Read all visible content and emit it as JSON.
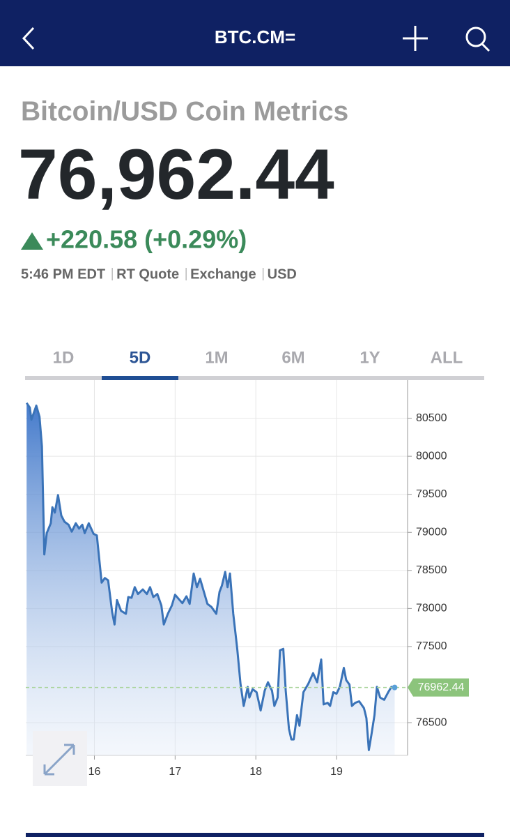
{
  "header": {
    "title": "BTC.CM="
  },
  "quote": {
    "name": "Bitcoin/USD Coin Metrics",
    "price": "76,962.44",
    "change": "+220.58 (+0.29%)",
    "meta": [
      "5:46 PM EDT",
      "RT Quote",
      "Exchange",
      "USD"
    ]
  },
  "tabs": {
    "items": [
      "1D",
      "5D",
      "1M",
      "6M",
      "1Y",
      "ALL"
    ],
    "active": 1
  },
  "chart_data": {
    "type": "area",
    "x": [
      15.16,
      15.2,
      15.22,
      15.28,
      15.32,
      15.35,
      15.38,
      15.41,
      15.46,
      15.48,
      15.51,
      15.55,
      15.59,
      15.63,
      15.68,
      15.72,
      15.77,
      15.81,
      15.85,
      15.88,
      15.93,
      15.99,
      16.03,
      16.09,
      16.13,
      16.17,
      16.22,
      16.25,
      16.28,
      16.33,
      16.39,
      16.42,
      16.46,
      16.5,
      16.54,
      16.6,
      16.65,
      16.69,
      16.73,
      16.78,
      16.83,
      16.86,
      16.91,
      16.96,
      17.0,
      17.04,
      17.09,
      17.14,
      17.18,
      17.23,
      17.27,
      17.31,
      17.34,
      17.4,
      17.45,
      17.51,
      17.55,
      17.58,
      17.62,
      17.65,
      17.68,
      17.72,
      17.77,
      17.81,
      17.85,
      17.9,
      17.92,
      17.96,
      18.01,
      18.06,
      18.11,
      18.15,
      18.2,
      18.23,
      18.27,
      18.3,
      18.34,
      18.37,
      18.41,
      18.44,
      18.47,
      18.51,
      18.54,
      18.59,
      18.65,
      18.71,
      18.76,
      18.81,
      18.84,
      18.89,
      18.92,
      18.96,
      19.0,
      19.04,
      19.09,
      19.12,
      19.16,
      19.19,
      19.23,
      19.28,
      19.34,
      19.37,
      19.4,
      19.43,
      19.47,
      19.5,
      19.54,
      19.59,
      19.64,
      19.68,
      19.72
    ],
    "values": [
      80700,
      80640,
      80480,
      80665,
      80520,
      80130,
      78710,
      78990,
      79120,
      79330,
      79260,
      79490,
      79220,
      79140,
      79100,
      79010,
      79120,
      79050,
      79100,
      78990,
      79120,
      78980,
      78960,
      78340,
      78400,
      78370,
      77950,
      77790,
      78110,
      77970,
      77930,
      78150,
      78140,
      78280,
      78190,
      78250,
      78190,
      78280,
      78150,
      78190,
      78040,
      77790,
      77930,
      78040,
      78180,
      78130,
      78070,
      78160,
      78060,
      78460,
      78280,
      78390,
      78280,
      78060,
      78020,
      77930,
      78220,
      78300,
      78480,
      78280,
      78460,
      77930,
      77470,
      77010,
      76720,
      76970,
      76830,
      76940,
      76900,
      76660,
      76920,
      77030,
      76920,
      76720,
      76830,
      77450,
      77470,
      76920,
      76420,
      76280,
      76280,
      76600,
      76460,
      76900,
      77010,
      77150,
      77030,
      77330,
      76740,
      76760,
      76720,
      76900,
      76880,
      76970,
      77220,
      77060,
      77000,
      76720,
      76760,
      76780,
      76690,
      76560,
      76140,
      76330,
      76600,
      76970,
      76830,
      76800,
      76900,
      76970,
      76962.44
    ],
    "color": "#3a73b8",
    "xlim": [
      15.15,
      19.88
    ],
    "xticks": [
      16,
      17,
      18,
      19
    ],
    "ylim": [
      76070,
      81000
    ],
    "yticks": [
      76500,
      77500,
      78000,
      78500,
      79000,
      79500,
      80000,
      80500
    ],
    "grid": true
  }
}
